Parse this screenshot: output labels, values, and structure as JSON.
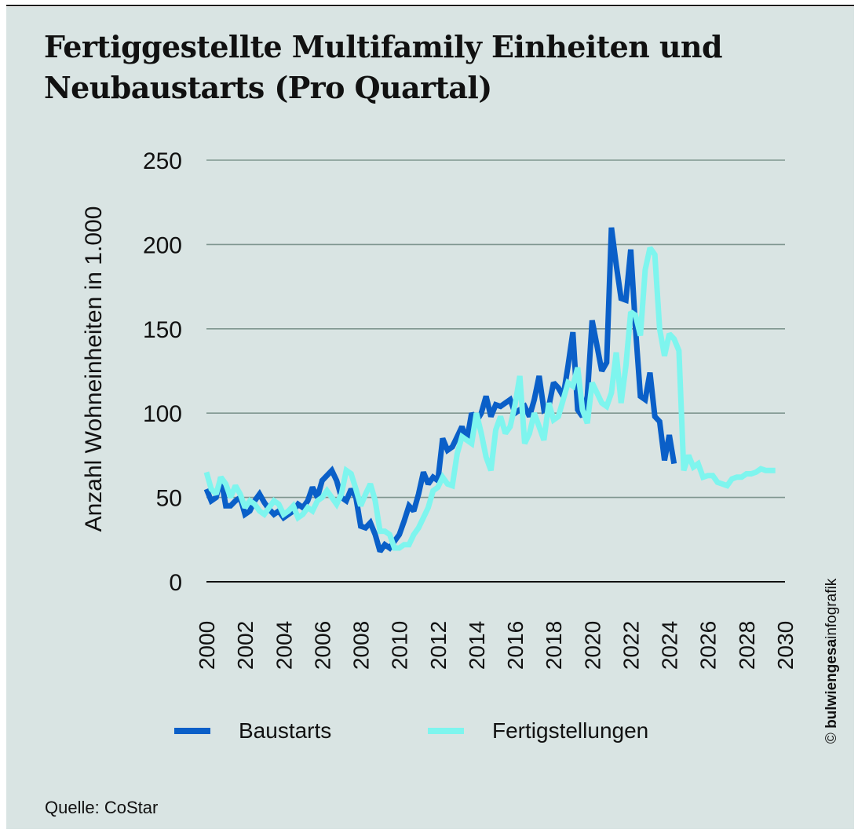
{
  "chart_data": {
    "type": "line",
    "title": "Fertiggestellte Multifamily Einheiten und Neubaustarts (Pro Quartal)",
    "xlabel": "",
    "ylabel": "Anzahl Wohneinheiten in 1.000",
    "ylim": [
      0,
      250
    ],
    "xlim": [
      2000,
      2030
    ],
    "yticks": [
      0,
      50,
      100,
      150,
      200,
      250
    ],
    "xticks": [
      "2000",
      "2002",
      "2004",
      "2006",
      "2008",
      "2010",
      "2012",
      "2014",
      "2016",
      "2018",
      "2020",
      "2022",
      "2024",
      "2026",
      "2028",
      "2030"
    ],
    "grid": true,
    "legend_position": "bottom",
    "x_start": 2000,
    "x_step": 0.25,
    "series": [
      {
        "name": "Baustarts",
        "color": "#0a5fc8",
        "values": [
          55,
          48,
          50,
          62,
          45,
          45,
          48,
          50,
          40,
          42,
          48,
          52,
          47,
          43,
          40,
          42,
          38,
          40,
          42,
          46,
          44,
          48,
          56,
          50,
          60,
          63,
          66,
          60,
          50,
          48,
          55,
          50,
          33,
          32,
          35,
          28,
          18,
          22,
          20,
          24,
          28,
          36,
          45,
          42,
          52,
          65,
          58,
          62,
          60,
          85,
          78,
          80,
          86,
          92,
          84,
          100,
          95,
          100,
          110,
          98,
          105,
          104,
          106,
          108,
          100,
          102,
          104,
          98,
          108,
          122,
          102,
          104,
          118,
          115,
          110,
          128,
          148,
          102,
          98,
          110,
          155,
          140,
          125,
          130,
          210,
          188,
          168,
          167,
          197,
          150,
          110,
          108,
          124,
          98,
          95,
          72,
          87,
          70
        ]
      },
      {
        "name": "Fertigstellungen",
        "color": "#7ef5ee",
        "values": [
          65,
          55,
          52,
          62,
          58,
          50,
          57,
          52,
          44,
          48,
          46,
          42,
          40,
          44,
          48,
          46,
          40,
          42,
          45,
          38,
          40,
          44,
          42,
          48,
          50,
          54,
          50,
          46,
          52,
          66,
          64,
          55,
          45,
          52,
          58,
          48,
          30,
          30,
          28,
          20,
          20,
          22,
          22,
          28,
          32,
          38,
          44,
          54,
          56,
          62,
          58,
          57,
          76,
          86,
          84,
          82,
          100,
          88,
          74,
          66,
          90,
          98,
          88,
          92,
          105,
          122,
          82,
          88,
          100,
          92,
          84,
          106,
          96,
          98,
          108,
          118,
          116,
          127,
          102,
          94,
          118,
          112,
          106,
          104,
          112,
          136,
          106,
          128,
          160,
          158,
          146,
          185,
          198,
          194,
          150,
          134,
          147,
          144,
          137,
          66,
          75,
          68,
          70,
          62,
          63,
          63,
          59,
          58,
          57,
          61,
          62,
          62,
          64,
          64,
          65,
          67,
          66,
          66,
          66
        ]
      }
    ]
  },
  "header": {
    "title": "Fertiggestellte Multifamily Einheiten und Neubaustarts (Pro Quartal)"
  },
  "legend": {
    "items": [
      {
        "label": "Baustarts",
        "color": "#0a5fc8"
      },
      {
        "label": "Fertigstellungen",
        "color": "#7ef5ee"
      }
    ]
  },
  "footer": {
    "source": "Quelle: CoStar",
    "credit_symbol": "©",
    "credit_bold": "bulwiengesa",
    "credit_light": "infografik"
  }
}
